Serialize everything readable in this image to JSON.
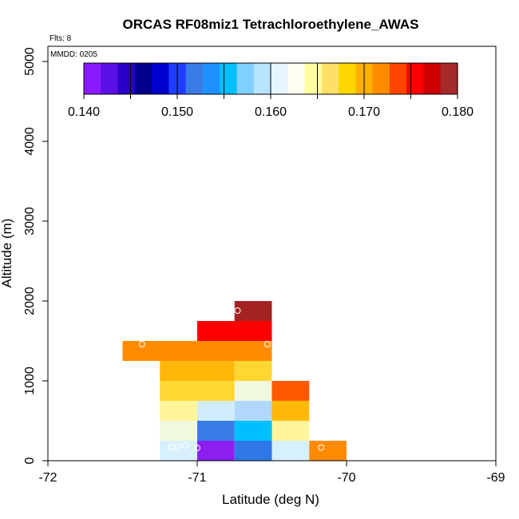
{
  "chart_data": {
    "type": "heatmap",
    "title": "ORCAS RF08miz1 Tetrachloroethylene_AWAS",
    "xlabel": "Latitude (deg N)",
    "ylabel": "Altitude (m)",
    "xlim": [
      -72,
      -69
    ],
    "ylim": [
      0,
      5200
    ],
    "x_ticks": [
      -72,
      -71,
      -70,
      -69
    ],
    "x_tick_labels": [
      "-72",
      "-71",
      "-70",
      "-69"
    ],
    "y_ticks": [
      0,
      1000,
      2000,
      3000,
      4000,
      5000
    ],
    "y_tick_labels": [
      "0",
      "1000",
      "2000",
      "3000",
      "4000",
      "5000"
    ],
    "notes": {
      "flights": "Flts: 8",
      "mmdd": "MMDD: 0205"
    },
    "colorbar": {
      "range": [
        0.14,
        0.18
      ],
      "ticks": [
        0.14,
        0.15,
        0.16,
        0.17,
        0.18
      ],
      "tick_labels": [
        "0.140",
        "0.150",
        "0.160",
        "0.170",
        "0.180"
      ],
      "colors": [
        "#8b1aff",
        "#5a0fe6",
        "#2a00c8",
        "#00008b",
        "#0000cd",
        "#1e3cff",
        "#3a7ce6",
        "#1e90ff",
        "#00bfff",
        "#7fcfff",
        "#b8e4ff",
        "#e6f6ff",
        "#fffff0",
        "#ffffa0",
        "#ffe066",
        "#ffd700",
        "#ffb000",
        "#ff8c00",
        "#ff4500",
        "#ff0000",
        "#cc0000",
        "#a52a2a"
      ]
    },
    "cells": [
      {
        "x0": -71.25,
        "x1": -71.0,
        "y0": 0,
        "y1": 250,
        "color": "#d6f0ff"
      },
      {
        "x0": -71.0,
        "x1": -70.75,
        "y0": 0,
        "y1": 250,
        "color": "#8a1ff0"
      },
      {
        "x0": -70.75,
        "x1": -70.5,
        "y0": 0,
        "y1": 250,
        "color": "#3077e8"
      },
      {
        "x0": -70.5,
        "x1": -70.25,
        "y0": 0,
        "y1": 250,
        "color": "#d6f0ff"
      },
      {
        "x0": -70.25,
        "x1": -70.0,
        "y0": 0,
        "y1": 250,
        "color": "#ff8c00"
      },
      {
        "x0": -71.25,
        "x1": -71.0,
        "y0": 250,
        "y1": 500,
        "color": "#f0f8de"
      },
      {
        "x0": -71.0,
        "x1": -70.75,
        "y0": 250,
        "y1": 500,
        "color": "#3a7ce6"
      },
      {
        "x0": -70.75,
        "x1": -70.5,
        "y0": 250,
        "y1": 500,
        "color": "#00bfff"
      },
      {
        "x0": -70.5,
        "x1": -70.25,
        "y0": 250,
        "y1": 500,
        "color": "#fff59a"
      },
      {
        "x0": -71.25,
        "x1": -71.0,
        "y0": 500,
        "y1": 750,
        "color": "#fff59a"
      },
      {
        "x0": -71.0,
        "x1": -70.75,
        "y0": 500,
        "y1": 750,
        "color": "#d0ecff"
      },
      {
        "x0": -70.75,
        "x1": -70.5,
        "y0": 500,
        "y1": 750,
        "color": "#b0d8ff"
      },
      {
        "x0": -70.5,
        "x1": -70.25,
        "y0": 500,
        "y1": 750,
        "color": "#ffb80a"
      },
      {
        "x0": -71.25,
        "x1": -70.75,
        "y0": 750,
        "y1": 1000,
        "color": "#ffd733"
      },
      {
        "x0": -70.75,
        "x1": -70.5,
        "y0": 750,
        "y1": 1000,
        "color": "#f0f8de"
      },
      {
        "x0": -70.5,
        "x1": -70.25,
        "y0": 750,
        "y1": 1000,
        "color": "#ff5a00"
      },
      {
        "x0": -71.25,
        "x1": -70.75,
        "y0": 1000,
        "y1": 1250,
        "color": "#ffb80a"
      },
      {
        "x0": -70.75,
        "x1": -70.5,
        "y0": 1000,
        "y1": 1250,
        "color": "#ffd733"
      },
      {
        "x0": -71.5,
        "x1": -70.5,
        "y0": 1250,
        "y1": 1500,
        "color": "#ff8c00"
      },
      {
        "x0": -71.0,
        "x1": -70.5,
        "y0": 1500,
        "y1": 1750,
        "color": "#ff0000"
      },
      {
        "x0": -70.75,
        "x1": -70.5,
        "y0": 1750,
        "y1": 2000,
        "color": "#a52222"
      }
    ],
    "samples": [
      {
        "lat": -71.17,
        "alt": 170
      },
      {
        "lat": -71.13,
        "alt": 170
      },
      {
        "lat": -71.08,
        "alt": 190
      },
      {
        "lat": -71.0,
        "alt": 160
      },
      {
        "lat": -70.17,
        "alt": 165
      },
      {
        "lat": -71.37,
        "alt": 1460
      },
      {
        "lat": -70.53,
        "alt": 1460
      },
      {
        "lat": -70.73,
        "alt": 1880
      }
    ]
  }
}
